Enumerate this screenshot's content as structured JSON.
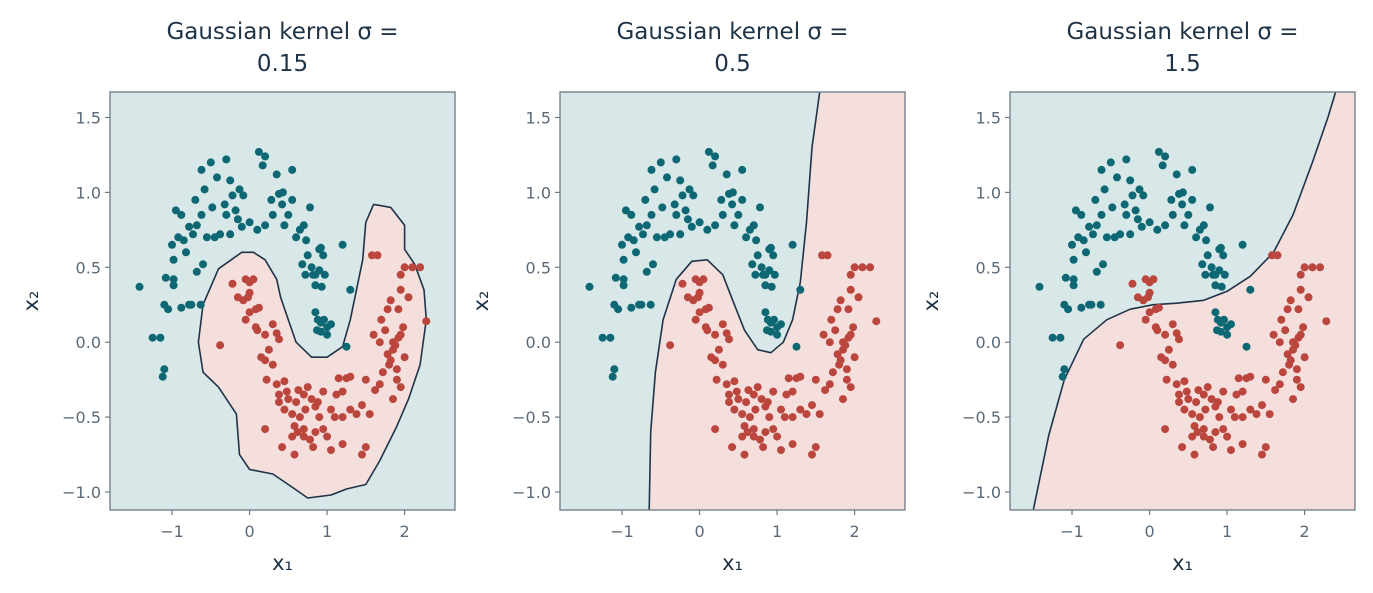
{
  "colors": {
    "class_a_point": "#0d6873",
    "class_b_point": "#bb463e",
    "class_a_region": "#d8e7e8",
    "class_b_region": "#f4dfdd",
    "boundary": "#1f3347"
  },
  "chart_data": [
    {
      "type": "scatter",
      "title_line1": "Gaussian kernel σ =",
      "title_line2": "0.15",
      "xlabel": "x₁",
      "ylabel": "x₂",
      "xlim": [
        -1.8,
        2.65
      ],
      "ylim": [
        -1.12,
        1.67
      ],
      "xticks": [
        -1,
        0,
        1,
        2
      ],
      "xticklabels": [
        "−1",
        "0",
        "1",
        "2"
      ],
      "yticks": [
        -1.0,
        -0.5,
        0.0,
        0.5,
        1.0,
        1.5
      ],
      "yticklabels": [
        "−1.0",
        "−0.5",
        "0.0",
        "0.5",
        "1.0",
        "1.5"
      ],
      "background_class": "a",
      "decision_boundary": [
        [
          -0.1,
          0.6
        ],
        [
          -0.4,
          0.49
        ],
        [
          -0.6,
          0.25
        ],
        [
          -0.66,
          0.0
        ],
        [
          -0.6,
          -0.2
        ],
        [
          -0.4,
          -0.3
        ],
        [
          -0.17,
          -0.48
        ],
        [
          -0.13,
          -0.75
        ],
        [
          0.0,
          -0.85
        ],
        [
          0.3,
          -0.88
        ],
        [
          0.5,
          -0.95
        ],
        [
          0.75,
          -1.04
        ],
        [
          1.05,
          -1.02
        ],
        [
          1.25,
          -0.98
        ],
        [
          1.5,
          -0.95
        ],
        [
          1.68,
          -0.79
        ],
        [
          1.9,
          -0.56
        ],
        [
          2.05,
          -0.38
        ],
        [
          2.2,
          -0.15
        ],
        [
          2.28,
          0.15
        ],
        [
          2.25,
          0.35
        ],
        [
          2.13,
          0.52
        ],
        [
          2.0,
          0.62
        ],
        [
          2.0,
          0.78
        ],
        [
          1.82,
          0.9
        ],
        [
          1.6,
          0.92
        ],
        [
          1.5,
          0.8
        ],
        [
          1.46,
          0.55
        ],
        [
          1.3,
          0.15
        ],
        [
          1.2,
          -0.03
        ],
        [
          1.0,
          -0.1
        ],
        [
          0.8,
          -0.1
        ],
        [
          0.6,
          0.0
        ],
        [
          0.5,
          0.15
        ],
        [
          0.4,
          0.3
        ],
        [
          0.35,
          0.42
        ],
        [
          0.2,
          0.55
        ],
        [
          0.05,
          0.6
        ],
        [
          -0.1,
          0.6
        ]
      ]
    },
    {
      "type": "scatter",
      "title_line1": "Gaussian kernel σ =",
      "title_line2": "0.5",
      "xlabel": "x₁",
      "ylabel": "x₂",
      "xlim": [
        -1.8,
        2.65
      ],
      "ylim": [
        -1.12,
        1.67
      ],
      "xticks": [
        -1,
        0,
        1,
        2
      ],
      "xticklabels": [
        "−1",
        "0",
        "1",
        "2"
      ],
      "yticks": [
        -1.0,
        -0.5,
        0.0,
        0.5,
        1.0,
        1.5
      ],
      "yticklabels": [
        "−1.0",
        "−0.5",
        "0.0",
        "0.5",
        "1.0",
        "1.5"
      ],
      "background_class": "a",
      "decision_boundary": [
        [
          -0.65,
          -1.12
        ],
        [
          -0.63,
          -0.6
        ],
        [
          -0.57,
          -0.2
        ],
        [
          -0.47,
          0.15
        ],
        [
          -0.3,
          0.42
        ],
        [
          -0.1,
          0.54
        ],
        [
          0.1,
          0.55
        ],
        [
          0.3,
          0.45
        ],
        [
          0.45,
          0.25
        ],
        [
          0.58,
          0.08
        ],
        [
          0.75,
          -0.05
        ],
        [
          0.92,
          -0.07
        ],
        [
          1.08,
          0.0
        ],
        [
          1.2,
          0.15
        ],
        [
          1.3,
          0.4
        ],
        [
          1.38,
          0.8
        ],
        [
          1.45,
          1.3
        ],
        [
          1.55,
          1.67
        ],
        [
          2.65,
          1.67
        ],
        [
          2.65,
          -1.12
        ]
      ]
    },
    {
      "type": "scatter",
      "title_line1": "Gaussian kernel σ =",
      "title_line2": "1.5",
      "xlabel": "x₁",
      "ylabel": "x₂",
      "xlim": [
        -1.8,
        2.65
      ],
      "ylim": [
        -1.12,
        1.67
      ],
      "xticks": [
        -1,
        0,
        1,
        2
      ],
      "xticklabels": [
        "−1",
        "0",
        "1",
        "2"
      ],
      "yticks": [
        -1.0,
        -0.5,
        0.0,
        0.5,
        1.0,
        1.5
      ],
      "yticklabels": [
        "−1.0",
        "−0.5",
        "0.0",
        "0.5",
        "1.0",
        "1.5"
      ],
      "background_class": "a",
      "decision_boundary": [
        [
          -1.5,
          -1.12
        ],
        [
          -1.3,
          -0.62
        ],
        [
          -1.1,
          -0.25
        ],
        [
          -0.85,
          0.02
        ],
        [
          -0.55,
          0.15
        ],
        [
          -0.25,
          0.22
        ],
        [
          0.05,
          0.25
        ],
        [
          0.35,
          0.26
        ],
        [
          0.7,
          0.28
        ],
        [
          1.0,
          0.34
        ],
        [
          1.3,
          0.44
        ],
        [
          1.6,
          0.6
        ],
        [
          1.85,
          0.85
        ],
        [
          2.1,
          1.2
        ],
        [
          2.3,
          1.5
        ],
        [
          2.4,
          1.67
        ],
        [
          2.65,
          1.67
        ],
        [
          2.65,
          -1.12
        ]
      ]
    }
  ],
  "points": {
    "class_a": [
      [
        -1.42,
        0.37
      ],
      [
        -1.25,
        0.03
      ],
      [
        -1.12,
        -0.23
      ],
      [
        -1.1,
        -0.18
      ],
      [
        -1.15,
        0.03
      ],
      [
        -1.05,
        0.22
      ],
      [
        -1.1,
        0.25
      ],
      [
        -0.98,
        0.38
      ],
      [
        -1.08,
        0.43
      ],
      [
        -0.98,
        0.42
      ],
      [
        -0.88,
        0.23
      ],
      [
        -0.78,
        0.25
      ],
      [
        -0.75,
        0.25
      ],
      [
        -0.63,
        0.25
      ],
      [
        -0.68,
        0.47
      ],
      [
        -0.6,
        0.52
      ],
      [
        -0.98,
        0.55
      ],
      [
        -1.0,
        0.65
      ],
      [
        -0.92,
        0.7
      ],
      [
        -0.85,
        0.68
      ],
      [
        -0.82,
        0.6
      ],
      [
        -0.88,
        0.85
      ],
      [
        -0.95,
        0.88
      ],
      [
        -0.73,
        0.72
      ],
      [
        -0.68,
        0.78
      ],
      [
        -0.78,
        0.77
      ],
      [
        -0.62,
        0.85
      ],
      [
        -0.55,
        0.7
      ],
      [
        -0.45,
        0.7
      ],
      [
        -0.38,
        0.72
      ],
      [
        -0.48,
        0.9
      ],
      [
        -0.32,
        0.92
      ],
      [
        -0.3,
        0.85
      ],
      [
        -0.18,
        0.88
      ],
      [
        -0.15,
        0.82
      ],
      [
        -0.22,
        0.98
      ],
      [
        -0.13,
        1.02
      ],
      [
        -0.08,
        0.98
      ],
      [
        -0.25,
        1.08
      ],
      [
        -0.3,
        1.22
      ],
      [
        -0.42,
        1.1
      ],
      [
        -0.58,
        1.02
      ],
      [
        -0.62,
        1.15
      ],
      [
        -0.5,
        1.2
      ],
      [
        -0.7,
        0.95
      ],
      [
        -0.25,
        0.72
      ],
      [
        -0.1,
        0.77
      ],
      [
        0.0,
        0.8
      ],
      [
        0.1,
        0.75
      ],
      [
        0.2,
        0.78
      ],
      [
        0.12,
        1.27
      ],
      [
        0.2,
        1.24
      ],
      [
        0.17,
        1.18
      ],
      [
        0.35,
        1.12
      ],
      [
        0.28,
        0.95
      ],
      [
        0.3,
        0.85
      ],
      [
        0.38,
        0.99
      ],
      [
        0.42,
        0.92
      ],
      [
        0.43,
        1.0
      ],
      [
        0.5,
        0.85
      ],
      [
        0.55,
        1.15
      ],
      [
        0.55,
        0.95
      ],
      [
        0.45,
        0.78
      ],
      [
        0.6,
        0.7
      ],
      [
        0.65,
        0.75
      ],
      [
        0.7,
        0.78
      ],
      [
        0.73,
        0.68
      ],
      [
        0.78,
        0.9
      ],
      [
        0.75,
        0.58
      ],
      [
        0.68,
        0.52
      ],
      [
        0.8,
        0.5
      ],
      [
        0.82,
        0.45
      ],
      [
        0.85,
        0.45
      ],
      [
        0.72,
        0.45
      ],
      [
        0.9,
        0.62
      ],
      [
        0.95,
        0.58
      ],
      [
        0.92,
        0.63
      ],
      [
        0.97,
        0.45
      ],
      [
        0.93,
        0.37
      ],
      [
        0.9,
        0.48
      ],
      [
        0.85,
        0.38
      ],
      [
        0.85,
        0.2
      ],
      [
        0.88,
        0.15
      ],
      [
        0.92,
        0.13
      ],
      [
        0.96,
        0.15
      ],
      [
        1.0,
        0.1
      ],
      [
        0.92,
        0.07
      ],
      [
        1.0,
        0.05
      ],
      [
        1.05,
        0.12
      ],
      [
        0.87,
        0.08
      ],
      [
        1.2,
        0.65
      ],
      [
        1.25,
        -0.03
      ],
      [
        1.3,
        0.35
      ]
    ],
    "class_b": [
      [
        -0.38,
        -0.02
      ],
      [
        -0.22,
        0.39
      ],
      [
        -0.15,
        0.3
      ],
      [
        -0.05,
        0.42
      ],
      [
        -0.02,
        0.3
      ],
      [
        0.0,
        0.33
      ],
      [
        0.0,
        0.4
      ],
      [
        0.05,
        0.42
      ],
      [
        -0.08,
        0.28
      ],
      [
        -0.05,
        0.15
      ],
      [
        0.08,
        0.22
      ],
      [
        0.0,
        0.2
      ],
      [
        0.12,
        0.23
      ],
      [
        0.08,
        0.1
      ],
      [
        0.1,
        0.08
      ],
      [
        0.2,
        0.05
      ],
      [
        0.3,
        0.12
      ],
      [
        0.35,
        0.06
      ],
      [
        0.38,
        0.02
      ],
      [
        0.25,
        -0.05
      ],
      [
        0.2,
        -0.12
      ],
      [
        0.15,
        -0.1
      ],
      [
        0.3,
        -0.15
      ],
      [
        0.22,
        -0.25
      ],
      [
        0.35,
        -0.28
      ],
      [
        0.38,
        -0.35
      ],
      [
        0.45,
        -0.26
      ],
      [
        0.48,
        -0.33
      ],
      [
        0.45,
        -0.45
      ],
      [
        0.38,
        -0.4
      ],
      [
        0.5,
        -0.38
      ],
      [
        0.55,
        -0.48
      ],
      [
        0.6,
        -0.4
      ],
      [
        0.63,
        -0.32
      ],
      [
        0.7,
        -0.35
      ],
      [
        0.75,
        -0.3
      ],
      [
        0.65,
        -0.5
      ],
      [
        0.58,
        -0.56
      ],
      [
        0.7,
        -0.58
      ],
      [
        0.62,
        -0.6
      ],
      [
        0.55,
        -0.63
      ],
      [
        0.72,
        -0.45
      ],
      [
        0.8,
        -0.38
      ],
      [
        0.85,
        -0.43
      ],
      [
        0.88,
        -0.4
      ],
      [
        0.95,
        -0.33
      ],
      [
        0.9,
        -0.5
      ],
      [
        0.95,
        -0.58
      ],
      [
        0.85,
        -0.6
      ],
      [
        0.78,
        -0.65
      ],
      [
        0.82,
        -0.7
      ],
      [
        0.7,
        -0.63
      ],
      [
        1.0,
        -0.63
      ],
      [
        1.05,
        -0.45
      ],
      [
        1.12,
        -0.35
      ],
      [
        1.1,
        -0.5
      ],
      [
        1.2,
        -0.5
      ],
      [
        1.2,
        -0.33
      ],
      [
        1.25,
        -0.24
      ],
      [
        1.3,
        -0.23
      ],
      [
        1.15,
        -0.24
      ],
      [
        1.3,
        -0.45
      ],
      [
        1.38,
        -0.48
      ],
      [
        1.45,
        -0.42
      ],
      [
        1.5,
        -0.25
      ],
      [
        1.55,
        -0.48
      ],
      [
        1.62,
        -0.32
      ],
      [
        1.68,
        -0.28
      ],
      [
        1.72,
        -0.2
      ],
      [
        1.8,
        -0.15
      ],
      [
        1.78,
        -0.08
      ],
      [
        1.82,
        -0.12
      ],
      [
        1.85,
        -0.05
      ],
      [
        1.85,
        0.0
      ],
      [
        1.88,
        -0.02
      ],
      [
        1.92,
        0.03
      ],
      [
        1.95,
        0.05
      ],
      [
        1.98,
        0.1
      ],
      [
        2.0,
        -0.1
      ],
      [
        1.9,
        -0.18
      ],
      [
        1.9,
        -0.25
      ],
      [
        1.85,
        -0.38
      ],
      [
        1.95,
        -0.3
      ],
      [
        2.0,
        0.5
      ],
      [
        1.95,
        0.45
      ],
      [
        1.95,
        0.35
      ],
      [
        2.05,
        0.3
      ],
      [
        1.92,
        0.22
      ],
      [
        1.78,
        0.22
      ],
      [
        1.82,
        0.28
      ],
      [
        1.75,
        0.08
      ],
      [
        1.7,
        0.15
      ],
      [
        1.68,
        0.0
      ],
      [
        1.6,
        0.05
      ],
      [
        1.58,
        0.58
      ],
      [
        1.65,
        0.58
      ],
      [
        2.1,
        0.5
      ],
      [
        2.2,
        0.5
      ],
      [
        2.28,
        0.14
      ],
      [
        1.45,
        -0.75
      ],
      [
        1.2,
        -0.68
      ],
      [
        1.05,
        -0.72
      ],
      [
        0.58,
        -0.75
      ],
      [
        0.42,
        -0.7
      ],
      [
        0.2,
        -0.58
      ],
      [
        1.5,
        -0.7
      ]
    ]
  }
}
